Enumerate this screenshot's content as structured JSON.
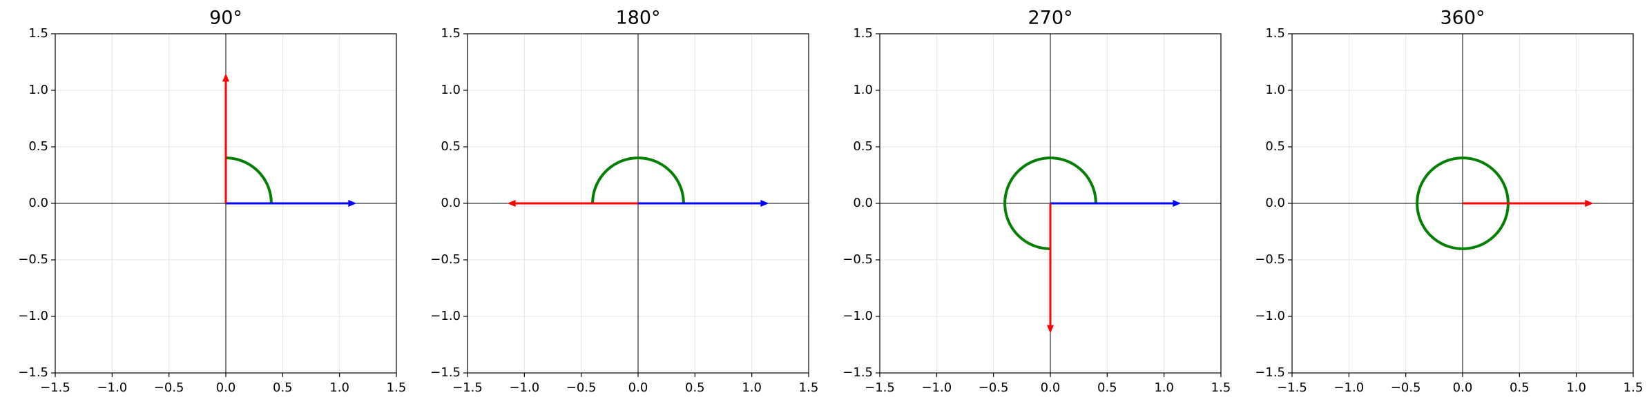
{
  "chart_data": [
    {
      "type": "angle",
      "title": "90°",
      "xlim": [
        -1.5,
        1.5
      ],
      "ylim": [
        -1.5,
        1.5
      ],
      "xticks": [
        {
          "value": -1.5,
          "label": "−1.5"
        },
        {
          "value": -1.0,
          "label": "−1.0"
        },
        {
          "value": -0.5,
          "label": "−0.5"
        },
        {
          "value": 0.0,
          "label": "0.0"
        },
        0.5,
        {
          "value": 1.0,
          "label": "1.0"
        },
        1.5
      ],
      "yticks": [
        {
          "value": -1.5,
          "label": "−1.5"
        },
        {
          "value": -1.0,
          "label": "−1.0"
        },
        {
          "value": -0.5,
          "label": "−0.5"
        },
        {
          "value": 0.0,
          "label": "0.0"
        },
        0.5,
        {
          "value": 1.0,
          "label": "1.0"
        },
        1.5
      ],
      "grid": true,
      "series": [
        {
          "color": "#0000ff",
          "x": [
            0,
            1.15
          ],
          "y": [
            0,
            0
          ]
        },
        {
          "color": "#ff0000",
          "x": [
            0,
            0
          ],
          "y": [
            0,
            1.15
          ]
        }
      ],
      "arc": {
        "color": "#008000",
        "radius": 0.4,
        "start": 0,
        "end": 90
      }
    },
    {
      "type": "angle",
      "title": "180°",
      "xlim": [
        -1.5,
        1.5
      ],
      "ylim": [
        -1.5,
        1.5
      ],
      "xticks": [
        {
          "value": -1.5,
          "label": "−1.5"
        },
        {
          "value": -1.0,
          "label": "−1.0"
        },
        {
          "value": -0.5,
          "label": "−0.5"
        },
        {
          "value": 0.0,
          "label": "0.0"
        },
        0.5,
        {
          "value": 1.0,
          "label": "1.0"
        },
        1.5
      ],
      "yticks": [
        {
          "value": -1.5,
          "label": "−1.5"
        },
        {
          "value": -1.0,
          "label": "−1.0"
        },
        {
          "value": -0.5,
          "label": "−0.5"
        },
        {
          "value": 0.0,
          "label": "0.0"
        },
        0.5,
        {
          "value": 1.0,
          "label": "1.0"
        },
        1.5
      ],
      "grid": true,
      "series": [
        {
          "color": "#0000ff",
          "x": [
            0,
            1.15
          ],
          "y": [
            0,
            0
          ]
        },
        {
          "color": "#ff0000",
          "x": [
            0,
            -1.15
          ],
          "y": [
            0,
            0
          ]
        }
      ],
      "arc": {
        "color": "#008000",
        "radius": 0.4,
        "start": 0,
        "end": 180
      }
    },
    {
      "type": "angle",
      "title": "270°",
      "xlim": [
        -1.5,
        1.5
      ],
      "ylim": [
        -1.5,
        1.5
      ],
      "xticks": [
        {
          "value": -1.5,
          "label": "−1.5"
        },
        {
          "value": -1.0,
          "label": "−1.0"
        },
        {
          "value": -0.5,
          "label": "−0.5"
        },
        {
          "value": 0.0,
          "label": "0.0"
        },
        0.5,
        {
          "value": 1.0,
          "label": "1.0"
        },
        1.5
      ],
      "yticks": [
        {
          "value": -1.5,
          "label": "−1.5"
        },
        {
          "value": -1.0,
          "label": "−1.0"
        },
        {
          "value": -0.5,
          "label": "−0.5"
        },
        {
          "value": 0.0,
          "label": "0.0"
        },
        0.5,
        {
          "value": 1.0,
          "label": "1.0"
        },
        1.5
      ],
      "grid": true,
      "series": [
        {
          "color": "#0000ff",
          "x": [
            0,
            1.15
          ],
          "y": [
            0,
            0
          ]
        },
        {
          "color": "#ff0000",
          "x": [
            0,
            0
          ],
          "y": [
            0,
            -1.15
          ]
        }
      ],
      "arc": {
        "color": "#008000",
        "radius": 0.4,
        "start": 0,
        "end": 270
      }
    },
    {
      "type": "angle",
      "title": "360°",
      "xlim": [
        -1.5,
        1.5
      ],
      "ylim": [
        -1.5,
        1.5
      ],
      "xticks": [
        {
          "value": -1.5,
          "label": "−1.5"
        },
        {
          "value": -1.0,
          "label": "−1.0"
        },
        {
          "value": -0.5,
          "label": "−0.5"
        },
        {
          "value": 0.0,
          "label": "0.0"
        },
        0.5,
        {
          "value": 1.0,
          "label": "1.0"
        },
        1.5
      ],
      "yticks": [
        {
          "value": -1.5,
          "label": "−1.5"
        },
        {
          "value": -1.0,
          "label": "−1.0"
        },
        {
          "value": -0.5,
          "label": "−0.5"
        },
        {
          "value": 0.0,
          "label": "0.0"
        },
        0.5,
        {
          "value": 1.0,
          "label": "1.0"
        },
        1.5
      ],
      "grid": true,
      "series": [
        {
          "color": "#0000ff",
          "x": [
            0,
            1.15
          ],
          "y": [
            0,
            0
          ]
        },
        {
          "color": "#ff0000",
          "x": [
            0,
            1.15
          ],
          "y": [
            0,
            0
          ]
        }
      ],
      "arc": {
        "color": "#008000",
        "radius": 0.4,
        "start": 0,
        "end": 360
      }
    }
  ]
}
